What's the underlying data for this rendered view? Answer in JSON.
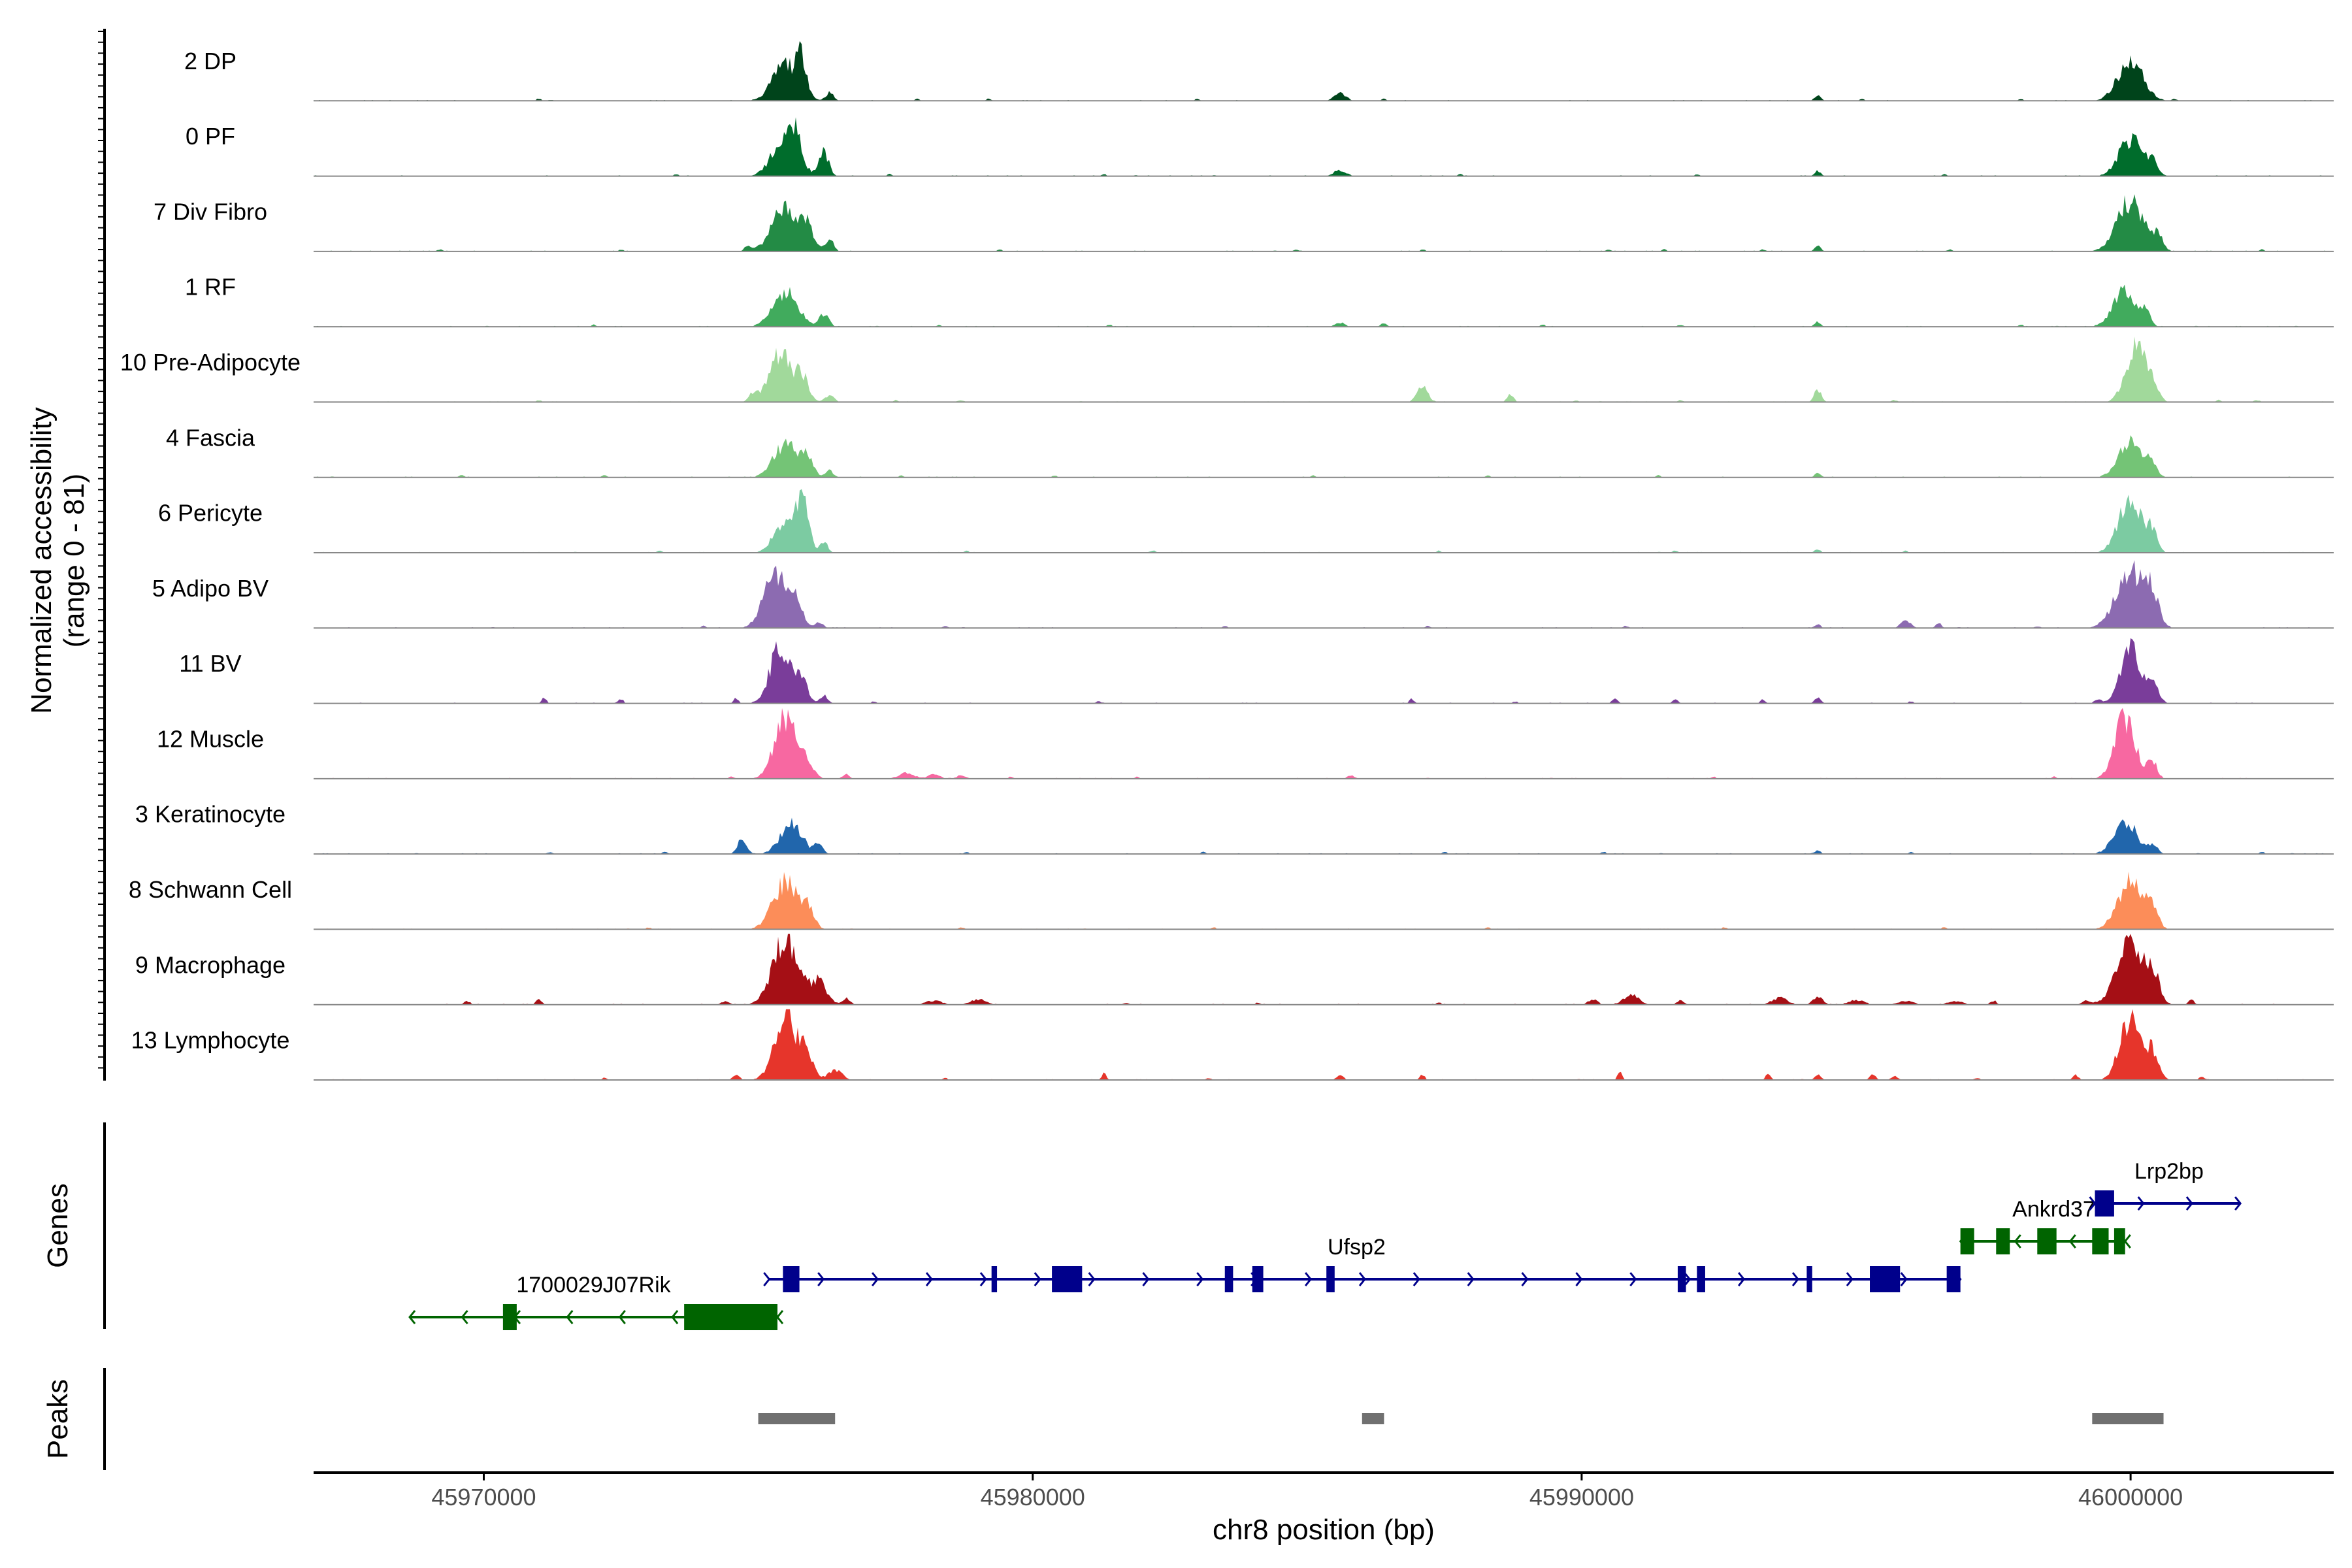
{
  "chart_data": {
    "type": "area",
    "chromosome": "chr8",
    "xlabel": "chr8 position (bp)",
    "ylabel_line1": "Normalized accessibility",
    "ylabel_line2": "(range 0 - 81)",
    "ylim": [
      0,
      81
    ],
    "xlim": [
      45966900,
      46003700
    ],
    "x_ticks": [
      45970000,
      45980000,
      45990000,
      46000000
    ],
    "x_tick_labels": [
      "45970000",
      "45980000",
      "45990000",
      "46000000"
    ],
    "tracks": [
      {
        "name": "2 DP",
        "color": "#00441b",
        "peaks": [
          [
            45975500,
            0.55,
            320
          ],
          [
            45975800,
            0.5,
            120
          ],
          [
            45976300,
            0.12,
            100
          ],
          [
            45985600,
            0.11,
            150
          ],
          [
            45994300,
            0.08,
            80
          ],
          [
            46000000,
            0.6,
            320
          ]
        ],
        "noise": [
          45971000,
          45977900,
          45979200,
          45983000,
          45986400,
          45995100,
          45998000,
          46000800
        ]
      },
      {
        "name": "0 PF",
        "color": "#006d2c",
        "peaks": [
          [
            45975500,
            0.6,
            320
          ],
          [
            45975700,
            0.42,
            100
          ],
          [
            45976200,
            0.35,
            120
          ],
          [
            45985600,
            0.09,
            160
          ],
          [
            45994300,
            0.08,
            80
          ],
          [
            46000000,
            0.55,
            300
          ],
          [
            46000400,
            0.22,
            120
          ]
        ],
        "noise": [
          45973500,
          45977400,
          45981300,
          45987800,
          45992100,
          45996600
        ]
      },
      {
        "name": "7 Div Fibro",
        "color": "#238b45",
        "peaks": [
          [
            45974800,
            0.08,
            80
          ],
          [
            45975500,
            0.65,
            340
          ],
          [
            45975900,
            0.3,
            160
          ],
          [
            45976300,
            0.18,
            100
          ],
          [
            45994300,
            0.08,
            80
          ],
          [
            46000000,
            0.75,
            340
          ],
          [
            46000500,
            0.22,
            120
          ]
        ],
        "noise": [
          45969200,
          45972500,
          45979400,
          45984800,
          45987100,
          45990500,
          45991500,
          45993300,
          45996700,
          46002400
        ]
      },
      {
        "name": "1 RF",
        "color": "#41ab5d",
        "peaks": [
          [
            45975500,
            0.5,
            320
          ],
          [
            45976200,
            0.18,
            120
          ],
          [
            45985600,
            0.06,
            120
          ],
          [
            45986400,
            0.05,
            80
          ],
          [
            45994300,
            0.07,
            80
          ],
          [
            45999900,
            0.55,
            300
          ],
          [
            46000300,
            0.18,
            100
          ]
        ],
        "noise": [
          45972000,
          45978300,
          45981400,
          45989300,
          45991800,
          45998000
        ]
      },
      {
        "name": "10 Pre-Adipocyte",
        "color": "#a1d99b",
        "peaks": [
          [
            45974900,
            0.12,
            100
          ],
          [
            45975400,
            0.75,
            280
          ],
          [
            45975800,
            0.35,
            160
          ],
          [
            45976300,
            0.1,
            120
          ],
          [
            45987100,
            0.22,
            140
          ],
          [
            45988700,
            0.12,
            80
          ],
          [
            45994300,
            0.18,
            90
          ],
          [
            46000100,
            0.8,
            260
          ],
          [
            46000400,
            0.25,
            140
          ]
        ],
        "noise": [
          45971000,
          45977500,
          45978700,
          45989900,
          45991800,
          45995700,
          46001600,
          46002300
        ]
      },
      {
        "name": "4 Fascia",
        "color": "#74c476",
        "peaks": [
          [
            45975500,
            0.5,
            300
          ],
          [
            45975900,
            0.25,
            150
          ],
          [
            45976300,
            0.1,
            100
          ],
          [
            45994300,
            0.06,
            80
          ],
          [
            46000000,
            0.55,
            300
          ],
          [
            46000400,
            0.18,
            120
          ]
        ],
        "noise": [
          45969600,
          45972200,
          45977600,
          45980400,
          45985100,
          45988300,
          45991400
        ]
      },
      {
        "name": "6 Pericyte",
        "color": "#7ccba2",
        "peaks": [
          [
            45975500,
            0.5,
            280
          ],
          [
            45975800,
            0.7,
            160
          ],
          [
            45976200,
            0.15,
            100
          ],
          [
            45994300,
            0.05,
            80
          ],
          [
            46000000,
            0.78,
            300
          ],
          [
            46000400,
            0.3,
            120
          ]
        ],
        "noise": [
          45973200,
          45978800,
          45982200,
          45987400,
          45991700,
          45995900
        ]
      },
      {
        "name": "5 Adipo BV",
        "color": "#8c6bb1",
        "peaks": [
          [
            45975300,
            0.85,
            280
          ],
          [
            45975700,
            0.35,
            160
          ],
          [
            45976100,
            0.1,
            100
          ],
          [
            45994300,
            0.05,
            80
          ],
          [
            45995900,
            0.12,
            120
          ],
          [
            45996500,
            0.07,
            80
          ],
          [
            46000000,
            0.85,
            360
          ],
          [
            46000400,
            0.4,
            160
          ]
        ],
        "noise": [
          45974000,
          45978400,
          45983500,
          45987200,
          45990800,
          45998300
        ]
      },
      {
        "name": "11 BV",
        "color": "#7a3d9a",
        "peaks": [
          [
            45971100,
            0.08,
            60
          ],
          [
            45972500,
            0.07,
            60
          ],
          [
            45974600,
            0.08,
            60
          ],
          [
            45975400,
            0.85,
            260
          ],
          [
            45975800,
            0.3,
            160
          ],
          [
            45976200,
            0.12,
            100
          ],
          [
            45986900,
            0.07,
            60
          ],
          [
            45990600,
            0.06,
            80
          ],
          [
            45991700,
            0.07,
            60
          ],
          [
            45993300,
            0.06,
            60
          ],
          [
            45994300,
            0.09,
            80
          ],
          [
            45999400,
            0.06,
            80
          ],
          [
            46000000,
            0.85,
            260
          ],
          [
            46000400,
            0.25,
            160
          ]
        ],
        "noise": [
          45977100,
          45981200,
          45988800,
          45996000
        ]
      },
      {
        "name": "12 Muscle",
        "color": "#f768a1",
        "peaks": [
          [
            45975500,
            0.92,
            280
          ],
          [
            45975900,
            0.2,
            160
          ],
          [
            45976600,
            0.06,
            100
          ],
          [
            45977700,
            0.08,
            200
          ],
          [
            45978200,
            0.06,
            150
          ],
          [
            45978700,
            0.05,
            120
          ],
          [
            45985800,
            0.05,
            100
          ],
          [
            45999900,
            0.9,
            260
          ],
          [
            46000400,
            0.25,
            120
          ]
        ],
        "noise": [
          45974500,
          45979600,
          45981900,
          45992400,
          45998600
        ]
      },
      {
        "name": "3 Keratinocyte",
        "color": "#2166ac",
        "peaks": [
          [
            45974700,
            0.2,
            120
          ],
          [
            45975600,
            0.45,
            280
          ],
          [
            45976100,
            0.15,
            100
          ],
          [
            45994300,
            0.05,
            80
          ],
          [
            45999900,
            0.5,
            280
          ],
          [
            46000400,
            0.15,
            120
          ]
        ],
        "noise": [
          45971200,
          45973300,
          45978800,
          45983100,
          45987500,
          45990400,
          45996000,
          46002400
        ]
      },
      {
        "name": "8 Schwann Cell",
        "color": "#fc8d59",
        "peaks": [
          [
            45975500,
            0.7,
            320
          ],
          [
            45975900,
            0.3,
            150
          ],
          [
            46000000,
            0.7,
            320
          ],
          [
            46000400,
            0.25,
            140
          ]
        ],
        "noise": [
          45973000,
          45978700,
          45983300,
          45988300,
          45992600,
          45996600
        ]
      },
      {
        "name": "9 Macrophage",
        "color": "#a50f15",
        "peaks": [
          [
            45969700,
            0.05,
            80
          ],
          [
            45971000,
            0.07,
            80
          ],
          [
            45974400,
            0.05,
            100
          ],
          [
            45975500,
            1.0,
            320
          ],
          [
            45976100,
            0.35,
            200
          ],
          [
            45976600,
            0.1,
            100
          ],
          [
            45978200,
            0.06,
            200
          ],
          [
            45979000,
            0.08,
            200
          ],
          [
            45990200,
            0.08,
            120
          ],
          [
            45990900,
            0.14,
            200
          ],
          [
            45991800,
            0.07,
            80
          ],
          [
            45993600,
            0.1,
            200
          ],
          [
            45994300,
            0.12,
            120
          ],
          [
            45995000,
            0.07,
            200
          ],
          [
            45995900,
            0.06,
            200
          ],
          [
            45996800,
            0.05,
            200
          ],
          [
            45997500,
            0.06,
            80
          ],
          [
            45999200,
            0.06,
            120
          ],
          [
            46000000,
            0.92,
            340
          ],
          [
            46000400,
            0.4,
            160
          ],
          [
            46001100,
            0.07,
            80
          ]
        ],
        "noise": [
          45981700,
          45984100,
          45987400
        ]
      },
      {
        "name": "13 Lymphocyte",
        "color": "#e6352b",
        "peaks": [
          [
            45974600,
            0.08,
            80
          ],
          [
            45975500,
            1.0,
            280
          ],
          [
            45975900,
            0.35,
            160
          ],
          [
            45976400,
            0.15,
            180
          ],
          [
            45981300,
            0.1,
            60
          ],
          [
            45985600,
            0.08,
            80
          ],
          [
            45987100,
            0.08,
            60
          ],
          [
            45990700,
            0.12,
            60
          ],
          [
            45993400,
            0.1,
            60
          ],
          [
            45994300,
            0.08,
            80
          ],
          [
            45995300,
            0.08,
            80
          ],
          [
            45995700,
            0.07,
            80
          ],
          [
            45999000,
            0.07,
            80
          ],
          [
            45999800,
            0.1,
            80
          ],
          [
            46000000,
            0.9,
            260
          ],
          [
            46000400,
            0.4,
            160
          ],
          [
            46001300,
            0.06,
            60
          ]
        ],
        "noise": [
          45972200,
          45978400,
          45983200,
          45997200
        ]
      }
    ],
    "genes_label": "Genes",
    "peaks_label": "Peaks",
    "genes": [
      {
        "name": "1700029J07Rik",
        "strand": "-",
        "color": "#006400",
        "row": 2,
        "start": 45968650,
        "end": 45975350,
        "label_x": 45972000,
        "exons": [
          [
            45970350,
            45970600
          ],
          [
            45973650,
            45975350
          ]
        ]
      },
      {
        "name": "Ufsp2",
        "strand": "+",
        "color": "#00008b",
        "row": 1,
        "start": 45975200,
        "end": 45996900,
        "label_x": 45985900,
        "exons": [
          [
            45975450,
            45975750
          ],
          [
            45979250,
            45979350
          ],
          [
            45980350,
            45980900
          ],
          [
            45983500,
            45983650
          ],
          [
            45984000,
            45984200
          ],
          [
            45985350,
            45985500
          ],
          [
            45991750,
            45991900
          ],
          [
            45992100,
            45992250
          ],
          [
            45994100,
            45994200
          ],
          [
            45995250,
            45995800
          ],
          [
            45996650,
            45996900
          ]
        ]
      },
      {
        "name": "Ankrd37",
        "strand": "-",
        "color": "#006400",
        "row": 0.5,
        "start": 45996900,
        "end": 45999900,
        "label_x": 45998600,
        "exons": [
          [
            45996900,
            45997150
          ],
          [
            45997550,
            45997800
          ],
          [
            45998300,
            45998650
          ],
          [
            45999300,
            45999600
          ],
          [
            45999700,
            45999900
          ]
        ]
      },
      {
        "name": "Lrp2bp",
        "strand": "+",
        "color": "#00008b",
        "row": 0,
        "start": 45999350,
        "end": 46002000,
        "label_x": 46000700,
        "exons": [
          [
            45999350,
            45999700
          ]
        ]
      }
    ],
    "peak_regions": [
      [
        45975000,
        45976400
      ],
      [
        45986000,
        45986400
      ],
      [
        45999300,
        46000600
      ]
    ]
  }
}
